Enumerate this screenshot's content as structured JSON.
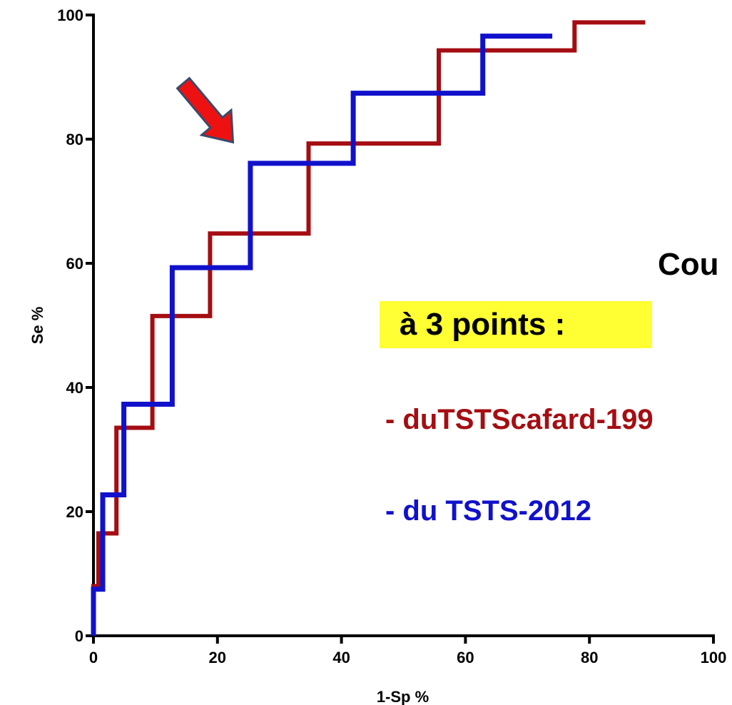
{
  "chart_data": {
    "type": "line",
    "xlabel": "1-Sp %",
    "ylabel": "Se %",
    "xlim": [
      0,
      100
    ],
    "ylim": [
      0,
      100
    ],
    "xticks": [
      0,
      20,
      40,
      60,
      80,
      100
    ],
    "yticks": [
      0,
      20,
      40,
      60,
      80,
      100
    ],
    "grid": false,
    "annotation_title": "Cou",
    "annotation_subtitle": "à 3 points :",
    "series": [
      {
        "name": "- duTSTScafard-199",
        "color": "#a50d12",
        "x": [
          0,
          0,
          0.8,
          0.8,
          3.7,
          3.7,
          9.5,
          9.5,
          18.8,
          18.8,
          34.7,
          34.7,
          55.7,
          55.7,
          77.6,
          77.6,
          89
        ],
        "y": [
          0,
          8,
          8,
          16.5,
          16.5,
          33.5,
          33.5,
          51.5,
          51.5,
          64.8,
          64.8,
          79.3,
          79.3,
          94.3,
          94.3,
          98.8,
          98.8
        ]
      },
      {
        "name": "- du TSTS-2012",
        "color": "#1111cc",
        "x": [
          0,
          0,
          1.5,
          1.5,
          4.9,
          4.9,
          12.7,
          12.7,
          25.3,
          25.3,
          41.9,
          41.9,
          62.8,
          62.8,
          74
        ],
        "y": [
          0,
          7.5,
          7.5,
          22.7,
          22.7,
          37.3,
          37.3,
          59.3,
          59.3,
          76.1,
          76.1,
          87.4,
          87.4,
          96.6,
          96.6
        ]
      }
    ],
    "arrow": {
      "from_xy": [
        14.5,
        89
      ],
      "to_xy": [
        22.5,
        79.5
      ],
      "color": "#ee1111"
    }
  }
}
